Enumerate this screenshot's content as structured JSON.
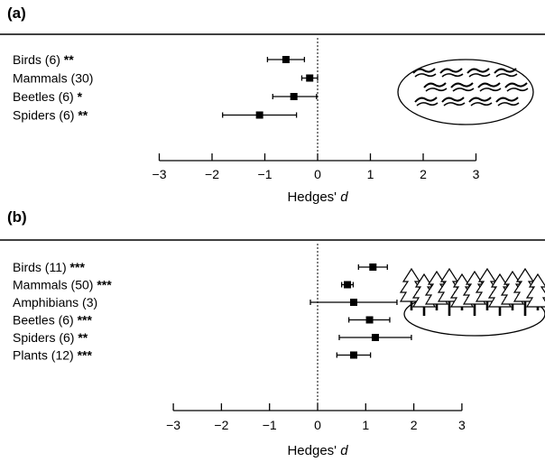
{
  "chart_data": [
    {
      "type": "forest",
      "panel": "(a)",
      "xlabel": "Hedges' d",
      "xticks": [
        "−3",
        "−2",
        "−1",
        "0",
        "1",
        "2",
        "3"
      ],
      "xlim": [
        -3,
        3
      ],
      "reference_line": 0,
      "illustration": "grassland-icon",
      "rows": [
        {
          "group": "Birds (6)",
          "sig": "**",
          "d": -0.6,
          "ci": [
            -0.95,
            -0.25
          ]
        },
        {
          "group": "Mammals (30)",
          "sig": "",
          "d": -0.15,
          "ci": [
            -0.3,
            0.0
          ]
        },
        {
          "group": "Beetles (6)",
          "sig": "*",
          "d": -0.45,
          "ci": [
            -0.85,
            -0.02
          ]
        },
        {
          "group": "Spiders (6)",
          "sig": "**",
          "d": -1.1,
          "ci": [
            -1.8,
            -0.4
          ]
        }
      ]
    },
    {
      "type": "forest",
      "panel": "(b)",
      "xlabel": "Hedges' d",
      "xticks": [
        "−3",
        "−2",
        "−1",
        "0",
        "1",
        "2",
        "3"
      ],
      "xlim": [
        -3,
        3
      ],
      "reference_line": 0,
      "illustration": "forest-icon",
      "rows": [
        {
          "group": "Birds (11)",
          "sig": "***",
          "d": 1.15,
          "ci": [
            0.85,
            1.45
          ]
        },
        {
          "group": "Mammals (50)",
          "sig": "***",
          "d": 0.62,
          "ci": [
            0.5,
            0.74
          ]
        },
        {
          "group": "Amphibians (3)",
          "sig": "",
          "d": 0.75,
          "ci": [
            -0.15,
            1.65
          ]
        },
        {
          "group": "Beetles (6)",
          "sig": "***",
          "d": 1.08,
          "ci": [
            0.65,
            1.5
          ]
        },
        {
          "group": "Spiders (6)",
          "sig": "**",
          "d": 1.2,
          "ci": [
            0.45,
            1.95
          ]
        },
        {
          "group": "Plants (12)",
          "sig": "***",
          "d": 0.75,
          "ci": [
            0.4,
            1.1
          ]
        }
      ]
    }
  ]
}
